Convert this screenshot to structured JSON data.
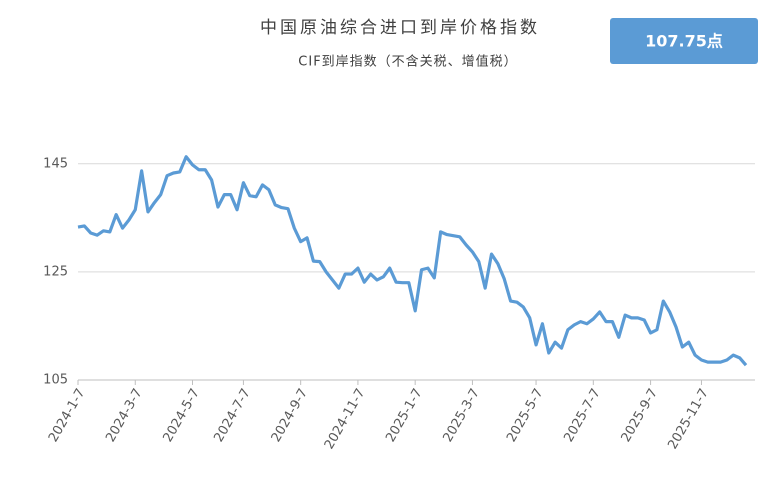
{
  "chart_data": {
    "type": "line",
    "title": "中国原油综合进口到岸价格指数",
    "subtitle": "CIF到岸指数（不含关税、增值税）",
    "badge": "107.75点",
    "categories": [
      "2024-1-7",
      null,
      null,
      null,
      null,
      null,
      null,
      null,
      null,
      "2024-3-7",
      null,
      null,
      null,
      null,
      null,
      null,
      null,
      null,
      "2024-5-7",
      null,
      null,
      null,
      null,
      null,
      null,
      null,
      "2024-7-7",
      null,
      null,
      null,
      null,
      null,
      null,
      null,
      null,
      "2024-9-7",
      null,
      null,
      null,
      null,
      null,
      null,
      null,
      null,
      "2024-11-7",
      null,
      null,
      null,
      null,
      null,
      null,
      null,
      null,
      "2025-1-7",
      null,
      null,
      null,
      null,
      null,
      null,
      null,
      null,
      "2025-3-7",
      null,
      null,
      null,
      null,
      null,
      null,
      null,
      null,
      null,
      "2025-5-7",
      null,
      null,
      null,
      null,
      null,
      null,
      null,
      null,
      "2025-7-7",
      null,
      null,
      null,
      null,
      null,
      null,
      null,
      null,
      "2025-9-7",
      null,
      null,
      null,
      null,
      null,
      null,
      null,
      "2025-11-7",
      null,
      null,
      null,
      null,
      null,
      null,
      null
    ],
    "values": [
      133.3,
      133.5,
      132.2,
      131.8,
      132.6,
      132.4,
      135.6,
      133.1,
      134.6,
      136.5,
      143.7,
      136.1,
      137.8,
      139.3,
      142.8,
      143.3,
      143.5,
      146.3,
      144.8,
      143.9,
      143.9,
      142.0,
      137.0,
      139.3,
      139.3,
      136.5,
      141.5,
      139.1,
      138.9,
      141.1,
      140.2,
      137.4,
      136.9,
      136.7,
      133.1,
      130.6,
      131.3,
      127.0,
      126.9,
      125.0,
      123.5,
      122.0,
      124.6,
      124.6,
      125.7,
      123.1,
      124.6,
      123.5,
      124.1,
      125.7,
      123.1,
      123.0,
      123.0,
      117.8,
      125.4,
      125.7,
      123.9,
      132.4,
      131.9,
      131.7,
      131.5,
      130.0,
      128.7,
      126.9,
      122.0,
      128.3,
      126.5,
      123.7,
      119.6,
      119.4,
      118.5,
      116.5,
      111.5,
      115.4,
      110.0,
      112.0,
      110.9,
      114.3,
      115.2,
      115.8,
      115.4,
      116.3,
      117.6,
      115.8,
      115.8,
      112.9,
      117.0,
      116.5,
      116.5,
      116.1,
      113.7,
      114.3,
      119.6,
      117.6,
      114.8,
      111.1,
      112.0,
      109.6,
      108.7,
      108.3,
      108.3,
      108.3,
      108.7,
      109.6,
      109.1,
      107.75
    ],
    "color": "#5b9bd5",
    "ylim": [
      105,
      147
    ],
    "yticks": [
      105,
      125,
      145
    ],
    "grid": true
  }
}
